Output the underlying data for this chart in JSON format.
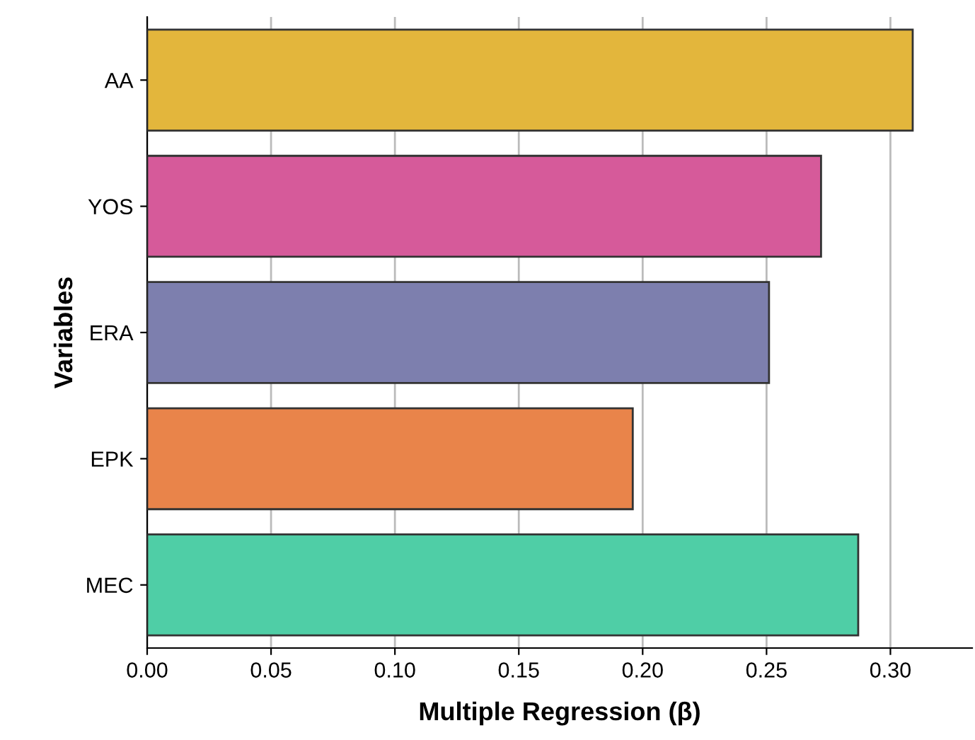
{
  "chart_data": {
    "type": "bar",
    "orientation": "horizontal",
    "xlabel": "Multiple Regression (β)",
    "ylabel": "Variables",
    "categories": [
      "AA",
      "YOS",
      "ERA",
      "EPK",
      "MEC"
    ],
    "values": [
      0.309,
      0.272,
      0.251,
      0.196,
      0.287
    ],
    "colors": [
      "#e3b63c",
      "#d65a9a",
      "#7d7fae",
      "#e9844a",
      "#4fcea6"
    ],
    "xlim": [
      0,
      0.333
    ],
    "xticks": [
      {
        "value": 0,
        "label": "0.00"
      },
      {
        "value": 0.05,
        "label": "0.05"
      },
      {
        "value": 0.1,
        "label": "0.10"
      },
      {
        "value": 0.15,
        "label": "0.15"
      },
      {
        "value": 0.2,
        "label": "0.20"
      },
      {
        "value": 0.25,
        "label": "0.25"
      },
      {
        "value": 0.3,
        "label": "0.30"
      }
    ],
    "grid": "x"
  }
}
